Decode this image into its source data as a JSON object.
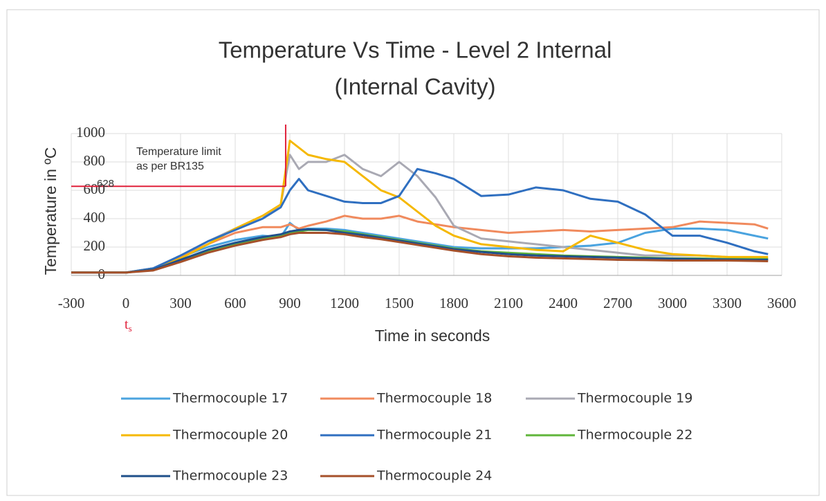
{
  "chart_data": {
    "type": "line",
    "title": "Temperature Vs Time - Level 2 Internal",
    "subtitle": "(Internal Cavity)",
    "x_label": "Time in seconds",
    "y_label": "Temperature in ºC",
    "annotation": [
      "Temperature limit",
      "as per BR135"
    ],
    "limit": {
      "x": 877,
      "y": 628,
      "color": "#e0203a"
    },
    "x_marker": {
      "base": "t",
      "sub": "s",
      "x": 0
    },
    "grid": true,
    "xlim": [
      -300,
      3600
    ],
    "xticks": [
      -300,
      0,
      300,
      600,
      900,
      1200,
      1500,
      1800,
      2100,
      2400,
      2700,
      3000,
      3300,
      3600
    ],
    "ylim": [
      0,
      1000
    ],
    "yticks": [
      0,
      200,
      400,
      600,
      800,
      1000
    ],
    "x": [
      -300,
      -150,
      0,
      150,
      300,
      450,
      600,
      750,
      850,
      900,
      950,
      1000,
      1100,
      1200,
      1300,
      1400,
      1500,
      1600,
      1700,
      1800,
      1950,
      2100,
      2250,
      2400,
      2550,
      2700,
      2850,
      3000,
      3150,
      3300,
      3450,
      3525
    ],
    "series": [
      {
        "name": "Thermocouple 17",
        "color": "#4aa3df",
        "values": [
          20,
          20,
          20,
          50,
          130,
          200,
          250,
          280,
          270,
          370,
          320,
          330,
          330,
          320,
          300,
          280,
          260,
          240,
          220,
          200,
          190,
          190,
          190,
          200,
          210,
          230,
          300,
          330,
          330,
          320,
          280,
          260
        ]
      },
      {
        "name": "Thermocouple 18",
        "color": "#f08a5d",
        "values": [
          20,
          20,
          20,
          50,
          130,
          220,
          300,
          340,
          340,
          360,
          330,
          350,
          380,
          420,
          400,
          400,
          420,
          380,
          360,
          340,
          320,
          300,
          310,
          320,
          310,
          320,
          330,
          340,
          380,
          370,
          360,
          330
        ]
      },
      {
        "name": "Thermocouple 19",
        "color": "#a9a9b3",
        "values": [
          20,
          20,
          20,
          50,
          140,
          240,
          330,
          400,
          500,
          850,
          750,
          800,
          800,
          850,
          750,
          700,
          800,
          700,
          550,
          350,
          260,
          240,
          220,
          200,
          180,
          160,
          140,
          140,
          140,
          130,
          120,
          120
        ]
      },
      {
        "name": "Thermocouple 20",
        "color": "#f5b800",
        "values": [
          20,
          20,
          20,
          40,
          120,
          220,
          330,
          420,
          500,
          950,
          900,
          850,
          820,
          800,
          700,
          600,
          550,
          450,
          350,
          280,
          220,
          200,
          180,
          170,
          280,
          230,
          180,
          150,
          140,
          130,
          130,
          130
        ]
      },
      {
        "name": "Thermocouple 21",
        "color": "#2f6fc0",
        "values": [
          20,
          20,
          20,
          50,
          140,
          240,
          320,
          400,
          480,
          600,
          680,
          600,
          560,
          520,
          510,
          510,
          560,
          750,
          720,
          680,
          560,
          570,
          620,
          600,
          540,
          520,
          430,
          280,
          280,
          230,
          170,
          150
        ]
      },
      {
        "name": "Thermocouple 22",
        "color": "#5fb53a",
        "values": [
          20,
          20,
          20,
          40,
          100,
          170,
          220,
          260,
          280,
          300,
          310,
          320,
          320,
          310,
          290,
          270,
          250,
          230,
          210,
          190,
          170,
          160,
          150,
          140,
          135,
          130,
          125,
          120,
          120,
          115,
          115,
          115
        ]
      },
      {
        "name": "Thermocouple 23",
        "color": "#1f4f8a",
        "values": [
          20,
          20,
          20,
          40,
          110,
          180,
          230,
          270,
          290,
          310,
          320,
          325,
          320,
          300,
          285,
          265,
          245,
          225,
          205,
          185,
          165,
          150,
          140,
          135,
          130,
          125,
          120,
          118,
          115,
          112,
          110,
          110
        ]
      },
      {
        "name": "Thermocouple 24",
        "color": "#a5502a",
        "values": [
          20,
          20,
          20,
          35,
          95,
          160,
          210,
          250,
          270,
          290,
          300,
          300,
          300,
          290,
          270,
          255,
          235,
          215,
          195,
          175,
          150,
          135,
          125,
          120,
          115,
          110,
          108,
          105,
          105,
          105,
          102,
          100
        ]
      }
    ]
  }
}
